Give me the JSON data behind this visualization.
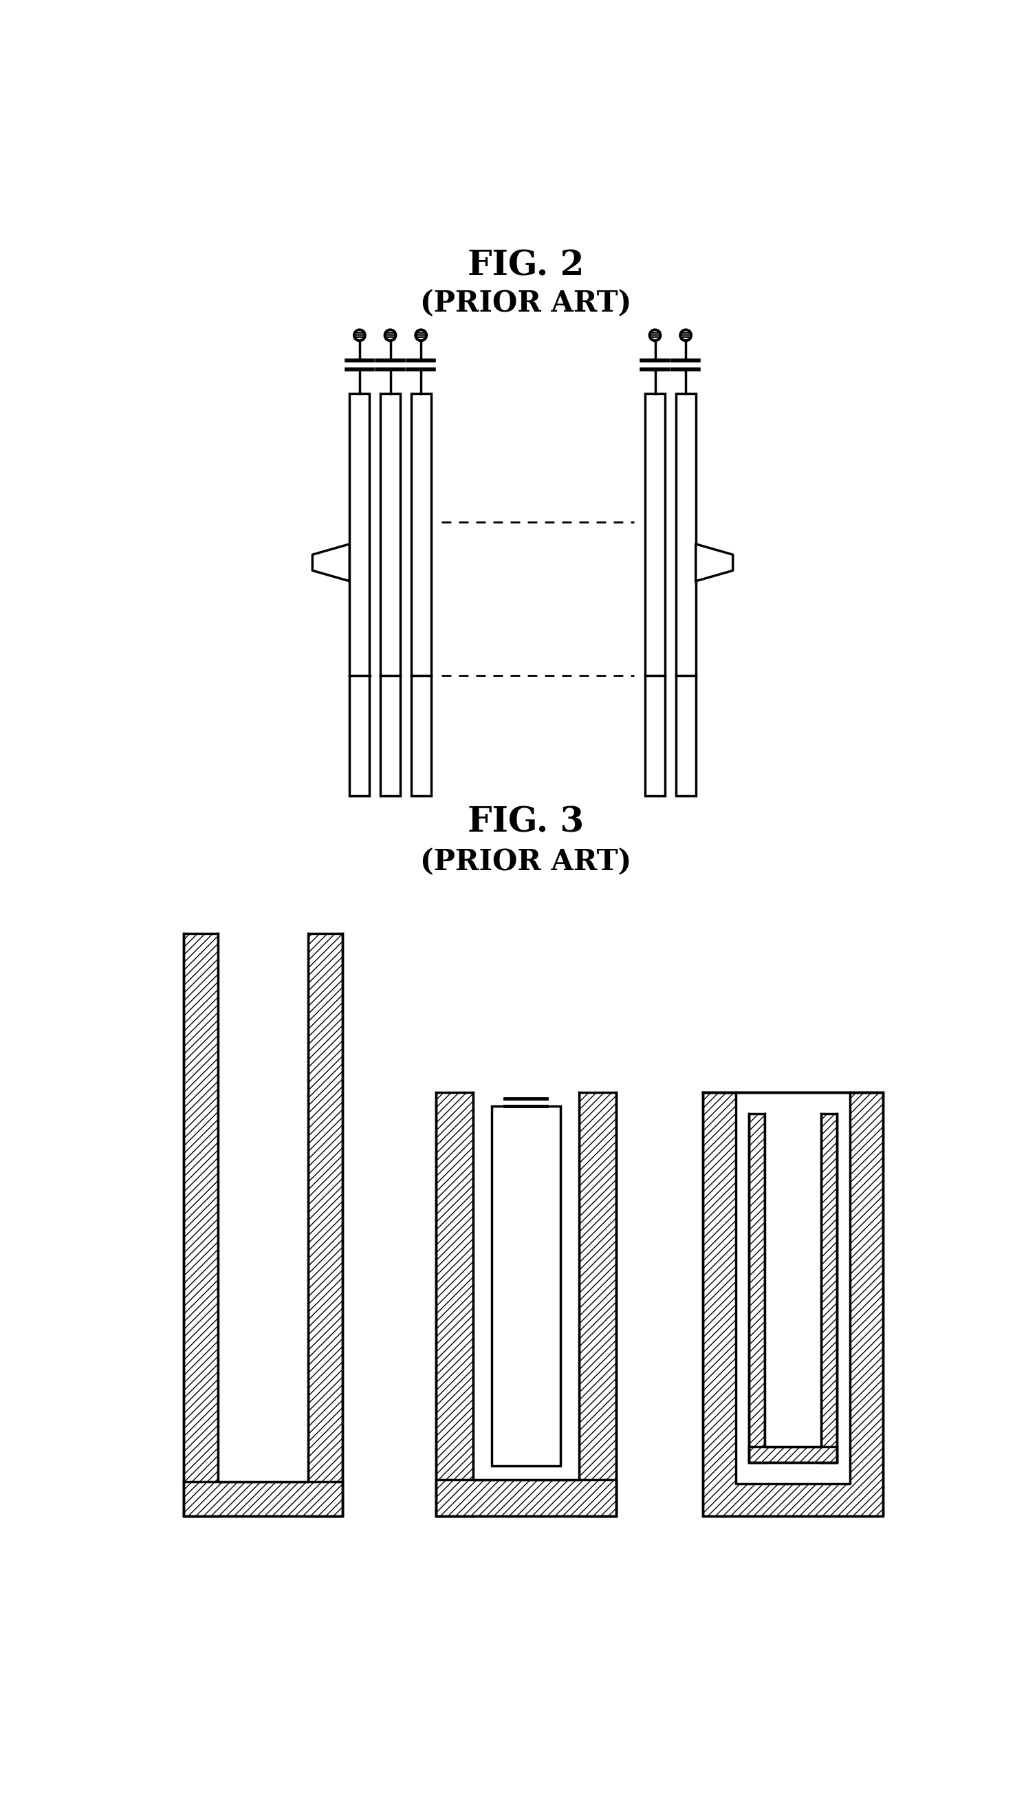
{
  "fig2_title": "FIG. 2",
  "fig2_subtitle": "(PRIOR ART)",
  "fig3_title": "FIG. 3",
  "fig3_subtitle": "(PRIOR ART)",
  "bg_color": "#ffffff",
  "line_color": "#000000",
  "title_fontsize": 36,
  "subtitle_fontsize": 30
}
